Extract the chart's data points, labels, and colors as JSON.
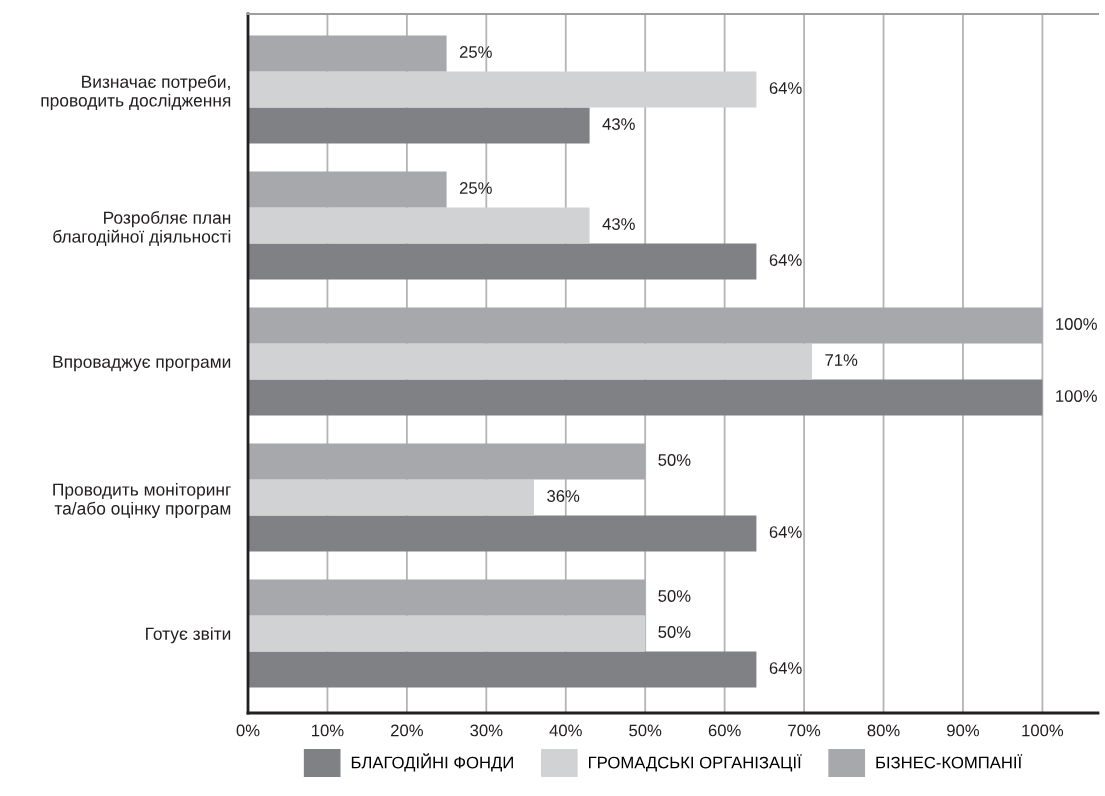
{
  "chart_data": {
    "type": "bar",
    "orientation": "horizontal",
    "categories": [
      "Визначає потреби,\nпроводить дослідження",
      "Розробляє план\nблагодійної діяльності",
      "Впроваджує програми",
      "Проводить моніторинг\nта/або оцінку програм",
      "Готує звіти"
    ],
    "series": [
      {
        "name": "БЛАГОДІЙНІ ФОНДИ",
        "color": "#808185",
        "values": [
          43,
          64,
          100,
          64,
          64
        ],
        "value_labels": [
          "43%",
          "64%",
          "100%",
          "64%",
          "64%"
        ]
      },
      {
        "name": "ГРОМАДСЬКІ ОРГАНІЗАЦІЇ",
        "color": "#d1d2d4",
        "values": [
          64,
          43,
          71,
          36,
          50
        ],
        "value_labels": [
          "64%",
          "43%",
          "71%",
          "36%",
          "50%"
        ]
      },
      {
        "name": "БІЗНЕС-КОМПАНІЇ",
        "color": "#a7a8ac",
        "values": [
          25,
          25,
          100,
          50,
          50
        ],
        "value_labels": [
          "25%",
          "25%",
          "100%",
          "50%",
          "50%"
        ]
      }
    ],
    "xlim": [
      0,
      107
    ],
    "xticks": [
      {
        "value": 0,
        "label": "0%"
      },
      {
        "value": 10,
        "label": "10%"
      },
      {
        "value": 20,
        "label": "20%"
      },
      {
        "value": 30,
        "label": "30%"
      },
      {
        "value": 40,
        "label": "40%"
      },
      {
        "value": 50,
        "label": "50%"
      },
      {
        "value": 60,
        "label": "60%"
      },
      {
        "value": 70,
        "label": "70%"
      },
      {
        "value": 80,
        "label": "80%"
      },
      {
        "value": 90,
        "label": "90%"
      },
      {
        "value": 100,
        "label": "100%"
      }
    ],
    "grid": "x",
    "legend": "bottom"
  }
}
